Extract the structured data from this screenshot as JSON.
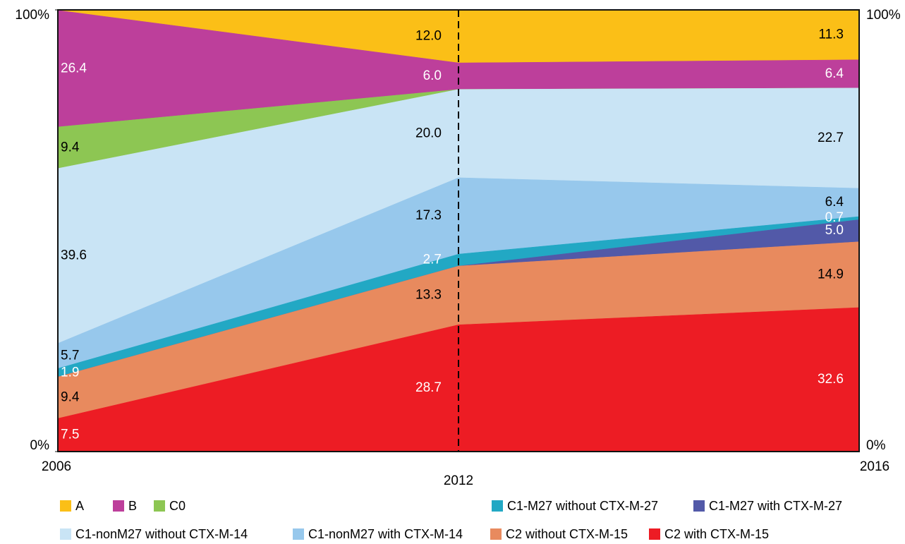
{
  "chart_data": {
    "type": "stacked_area",
    "categories": [
      "2006",
      "2012",
      "2016"
    ],
    "ylim": [
      0,
      100
    ],
    "yticks": [
      {
        "value": 0,
        "label": "0%"
      },
      {
        "value": 100,
        "label": "100%"
      }
    ],
    "reference_line": {
      "category": "2012",
      "style": "dashed"
    },
    "series": [
      {
        "name": "A",
        "color": "#fbbf17",
        "label_color": "#000",
        "values": [
          0.1,
          12.0,
          11.3
        ],
        "value_labels": [
          null,
          "12.0",
          "11.3"
        ]
      },
      {
        "name": "B",
        "color": "#bd3f9b",
        "label_color": "#fff",
        "values": [
          26.4,
          6.0,
          6.4
        ],
        "value_labels": [
          "26.4",
          "6.0",
          "6.4"
        ]
      },
      {
        "name": "C0",
        "color": "#8dc653",
        "label_color": "#000",
        "values": [
          9.4,
          0,
          0
        ],
        "value_labels": [
          "9.4",
          null,
          null
        ]
      },
      {
        "name": "C1-nonM27 without CTX-M-14",
        "color": "#c9e4f5",
        "label_color": "#000",
        "values": [
          39.6,
          20.0,
          22.7
        ],
        "value_labels": [
          "39.6",
          "20.0",
          "22.7"
        ]
      },
      {
        "name": "C1-nonM27 with CTX-M-14",
        "color": "#97c8ec",
        "label_color": "#000",
        "values": [
          5.7,
          17.3,
          6.4
        ],
        "value_labels": [
          "5.7",
          "17.3",
          "6.4"
        ]
      },
      {
        "name": "C1-M27 without CTX-M-27",
        "color": "#22a8c4",
        "label_color": "#fff",
        "values": [
          1.9,
          2.7,
          0.7
        ],
        "value_labels": [
          "1.9",
          "2.7",
          "0.7"
        ]
      },
      {
        "name": "C1-M27 with CTX-M-27",
        "color": "#5259a8",
        "label_color": "#fff",
        "values": [
          0,
          0,
          5.0
        ],
        "value_labels": [
          null,
          null,
          "5.0"
        ]
      },
      {
        "name": "C2 without CTX-M-15",
        "color": "#e88a5e",
        "label_color": "#000",
        "values": [
          9.4,
          13.3,
          14.9
        ],
        "value_labels": [
          "9.4",
          "13.3",
          "14.9"
        ]
      },
      {
        "name": "C2 with CTX-M-15",
        "color": "#ed1c24",
        "label_color": "#fff",
        "values": [
          7.5,
          28.7,
          32.6
        ],
        "value_labels": [
          "7.5",
          "28.7",
          "32.6"
        ]
      }
    ]
  }
}
